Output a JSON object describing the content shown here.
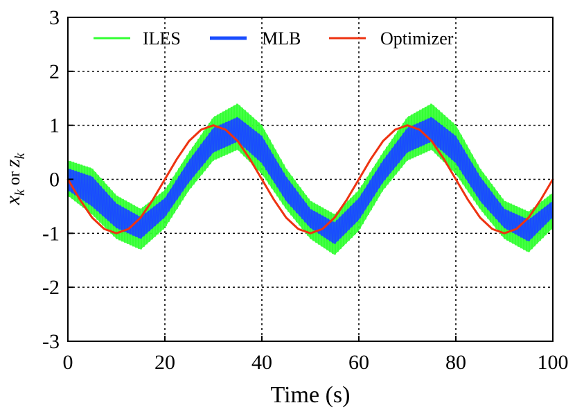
{
  "chart_data": {
    "type": "line",
    "xlabel": "Time (s)",
    "ylabel": {
      "x_var": "x",
      "sub1": "k",
      "or": "or",
      "z_var": "z",
      "sub2": "k"
    },
    "xlim": [
      0,
      100
    ],
    "ylim": [
      -3,
      3
    ],
    "xticks": [
      0,
      20,
      40,
      60,
      80,
      100
    ],
    "yticks": [
      -3,
      -2,
      -1,
      0,
      1,
      2,
      3
    ],
    "xtick_labels": [
      "0",
      "20",
      "40",
      "60",
      "80",
      "100"
    ],
    "ytick_labels": [
      "-3",
      "-2",
      "-1",
      "0",
      "1",
      "2",
      "3"
    ],
    "grid": true,
    "legend_position": "top",
    "series": [
      {
        "name": "ILES",
        "style": "band",
        "color": "#33ff33",
        "x": [
          0,
          5,
          10,
          15,
          20,
          25,
          30,
          35,
          40,
          45,
          50,
          55,
          60,
          65,
          70,
          75,
          80,
          85,
          90,
          95,
          100
        ],
        "lower": [
          -0.3,
          -0.65,
          -1.1,
          -1.3,
          -0.9,
          -0.2,
          0.35,
          0.55,
          0.1,
          -0.55,
          -1.1,
          -1.4,
          -0.95,
          -0.2,
          0.35,
          0.55,
          0.1,
          -0.55,
          -1.1,
          -1.35,
          -0.9
        ],
        "upper": [
          0.35,
          0.2,
          -0.3,
          -0.55,
          -0.2,
          0.5,
          1.15,
          1.4,
          1.0,
          0.2,
          -0.4,
          -0.65,
          -0.2,
          0.5,
          1.15,
          1.4,
          1.0,
          0.2,
          -0.4,
          -0.6,
          -0.25
        ]
      },
      {
        "name": "MLB",
        "style": "band",
        "color": "#1a4dff",
        "x": [
          0,
          5,
          10,
          15,
          20,
          25,
          30,
          35,
          40,
          45,
          50,
          55,
          60,
          65,
          70,
          75,
          80,
          85,
          90,
          95,
          100
        ],
        "lower": [
          -0.2,
          -0.5,
          -0.9,
          -1.1,
          -0.7,
          -0.05,
          0.5,
          0.7,
          0.3,
          -0.4,
          -0.9,
          -1.2,
          -0.75,
          -0.05,
          0.5,
          0.7,
          0.3,
          -0.4,
          -0.9,
          -1.15,
          -0.7
        ],
        "upper": [
          0.2,
          0.05,
          -0.45,
          -0.7,
          -0.35,
          0.35,
          0.95,
          1.15,
          0.8,
          0.05,
          -0.55,
          -0.8,
          -0.35,
          0.35,
          0.95,
          1.15,
          0.8,
          0.05,
          -0.55,
          -0.75,
          -0.4
        ]
      },
      {
        "name": "Optimizer",
        "style": "line",
        "color": "#ee3311",
        "x": [
          0,
          2.5,
          5,
          7.5,
          10,
          12.5,
          15,
          17.5,
          20,
          22.5,
          25,
          27.5,
          30,
          32.5,
          35,
          37.5,
          40,
          42.5,
          45,
          47.5,
          50,
          52.5,
          55,
          57.5,
          60,
          62.5,
          65,
          67.5,
          70,
          72.5,
          75,
          77.5,
          80,
          82.5,
          85,
          87.5,
          90,
          92.5,
          95,
          97.5,
          100
        ],
        "y": [
          0,
          -0.38,
          -0.71,
          -0.92,
          -1,
          -0.92,
          -0.71,
          -0.38,
          0,
          0.38,
          0.71,
          0.92,
          1,
          0.92,
          0.71,
          0.38,
          0,
          -0.38,
          -0.71,
          -0.92,
          -1,
          -0.92,
          -0.71,
          -0.38,
          0,
          0.38,
          0.71,
          0.92,
          1,
          0.92,
          0.71,
          0.38,
          0,
          -0.38,
          -0.71,
          -0.92,
          -1,
          -0.92,
          -0.71,
          -0.38,
          0
        ]
      }
    ]
  }
}
